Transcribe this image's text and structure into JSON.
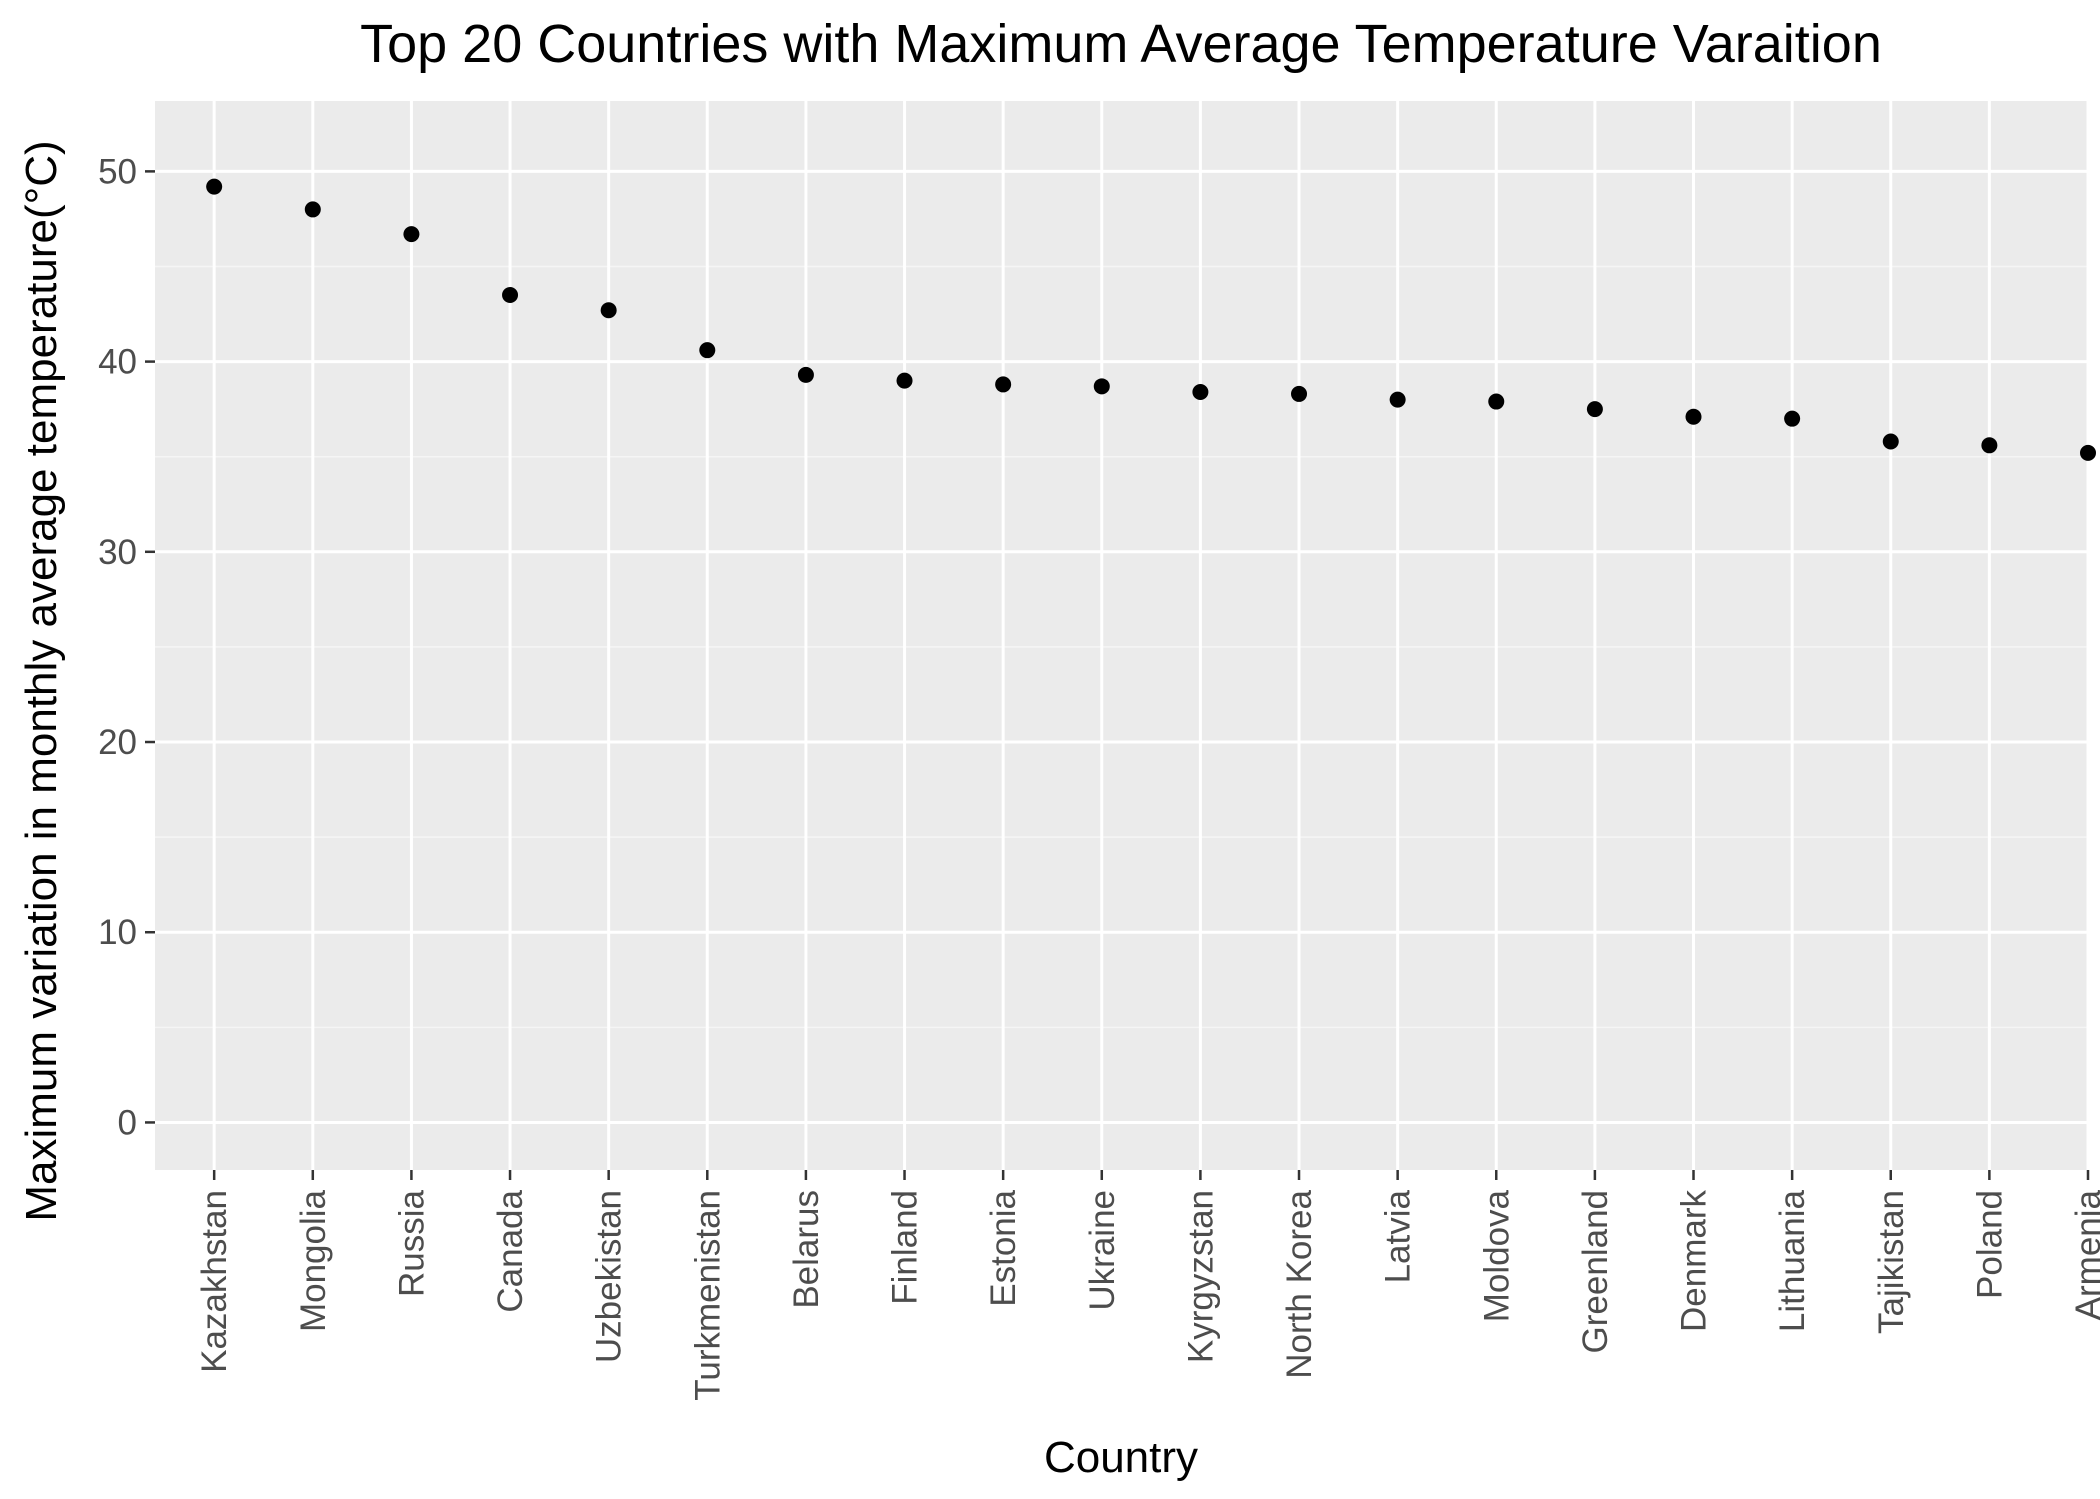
{
  "chart_data": {
    "type": "scatter",
    "title": "Top 20 Countries with Maximum Average Temperature Varaition",
    "xlabel": "Country",
    "ylabel": "Maximum variation in monthly average temperature(°C)",
    "categories": [
      "Kazakhstan",
      "Mongolia",
      "Russia",
      "Canada",
      "Uzbekistan",
      "Turkmenistan",
      "Belarus",
      "Finland",
      "Estonia",
      "Ukraine",
      "Kyrgyzstan",
      "North Korea",
      "Latvia",
      "Moldova",
      "Greenland",
      "Denmark",
      "Lithuania",
      "Tajikistan",
      "Poland",
      "Armenia"
    ],
    "values": [
      49.2,
      48.0,
      46.7,
      43.5,
      42.7,
      40.6,
      39.3,
      39.0,
      38.8,
      38.7,
      38.4,
      38.3,
      38.0,
      37.9,
      37.5,
      37.1,
      37.0,
      35.8,
      35.6,
      35.2
    ],
    "ylim": [
      -2.5,
      53.7
    ],
    "yticks": [
      0,
      10,
      20,
      30,
      40,
      50
    ],
    "grid": true,
    "legend": "none",
    "colors": {
      "panel_background": "#ebebeb",
      "grid_major": "#ffffff",
      "grid_minor": "#f5f5f5",
      "point": "#000000",
      "tick_label": "#4d4d4d",
      "tick_mark": "#333333"
    }
  }
}
